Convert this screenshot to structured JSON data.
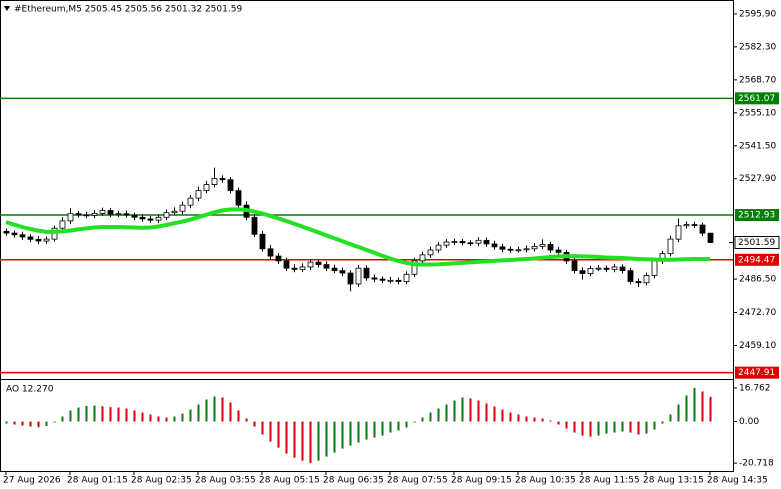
{
  "chart_data": {
    "type": "candlestick",
    "title": "#Ethereum,M5 2505.45 2505.56 2501.32 2501.59",
    "categories": [
      "27 Aug 2026",
      null,
      null,
      null,
      null,
      null,
      null,
      null,
      "28 Aug 01:15",
      null,
      null,
      null,
      null,
      null,
      null,
      null,
      "28 Aug 02:35",
      null,
      null,
      null,
      null,
      null,
      null,
      null,
      "28 Aug 03:55",
      null,
      null,
      null,
      null,
      null,
      null,
      null,
      "28 Aug 05:15",
      null,
      null,
      null,
      null,
      null,
      null,
      null,
      "28 Aug 06:35",
      null,
      null,
      null,
      null,
      null,
      null,
      null,
      "28 Aug 07:55",
      null,
      null,
      null,
      null,
      null,
      null,
      null,
      "28 Aug 09:15",
      null,
      null,
      null,
      null,
      null,
      null,
      null,
      "28 Aug 10:35",
      null,
      null,
      null,
      null,
      null,
      null,
      null,
      "28 Aug 11:55",
      null,
      null,
      null,
      null,
      null,
      null,
      null,
      "28 Aug 13:15",
      null,
      null,
      null,
      null,
      null,
      null,
      null,
      "28 Aug 14:35"
    ],
    "open": [
      2506.2,
      2505.5,
      2504.8,
      2503.9,
      2502.9,
      2502.2,
      2503.0,
      2507.5,
      2510.5,
      2513.5,
      2513.0,
      2512.8,
      2513.6,
      2514.8,
      2513.2,
      2513.5,
      2512.9,
      2512.0,
      2511.3,
      2510.8,
      2512.0,
      2513.9,
      2514.5,
      2517.0,
      2519.9,
      2523.0,
      2525.5,
      2528.0,
      2527.5,
      2523.0,
      2517.0,
      2512.0,
      2505.0,
      2499.0,
      2496.0,
      2494.0,
      2491.0,
      2490.5,
      2491.5,
      2493.5,
      2492.5,
      2491.0,
      2490.0,
      2489.0,
      2484.5,
      2491.0,
      2487.0,
      2486.5,
      2486.0,
      2486.0,
      2485.5,
      2488.5,
      2494.0,
      2496.5,
      2498.5,
      2500.5,
      2501.8,
      2502.0,
      2501.5,
      2501.3,
      2502.5,
      2501.0,
      2499.8,
      2498.8,
      2498.5,
      2498.6,
      2499.0,
      2500.0,
      2500.8,
      2498.5,
      2497.5,
      2494.0,
      2490.0,
      2488.8,
      2490.9,
      2491.0,
      2490.5,
      2491.5,
      2490.0,
      2485.5,
      2485.0,
      2488.0,
      2494.0,
      2497.0,
      2503.0,
      2508.5,
      2509.0,
      2508.8,
      2505.45
    ],
    "high": [
      2507.4,
      2506.5,
      2506.1,
      2505.0,
      2504.3,
      2504.1,
      2508.6,
      2512.0,
      2515.8,
      2514.6,
      2514.2,
      2514.9,
      2516.0,
      2515.9,
      2514.7,
      2514.8,
      2513.9,
      2513.2,
      2512.6,
      2513.1,
      2515.2,
      2516.1,
      2518.4,
      2521.2,
      2524.6,
      2527.0,
      2532.5,
      2529.3,
      2528.6,
      2524.3,
      2518.5,
      2513.4,
      2506.3,
      2500.6,
      2497.2,
      2495.3,
      2492.6,
      2493.0,
      2494.8,
      2494.6,
      2493.8,
      2492.4,
      2491.3,
      2490.1,
      2492.3,
      2492.2,
      2488.4,
      2487.6,
      2487.4,
      2487.1,
      2489.7,
      2495.3,
      2497.8,
      2499.9,
      2501.7,
      2503.0,
      2503.2,
      2503.1,
      2502.6,
      2503.8,
      2503.6,
      2502.3,
      2501.0,
      2500.0,
      2499.9,
      2500.3,
      2501.4,
      2502.9,
      2501.9,
      2499.7,
      2498.6,
      2495.2,
      2491.4,
      2492.0,
      2492.3,
      2492.1,
      2492.8,
      2492.6,
      2491.1,
      2486.8,
      2489.2,
      2495.3,
      2498.2,
      2504.4,
      2511.5,
      2510.2,
      2510.1,
      2509.8,
      2505.56
    ],
    "low": [
      2504.4,
      2503.6,
      2502.7,
      2501.8,
      2501.0,
      2501.1,
      2502.0,
      2506.3,
      2509.4,
      2511.9,
      2511.6,
      2511.7,
      2512.5,
      2512.0,
      2512.1,
      2511.8,
      2510.9,
      2510.1,
      2509.7,
      2509.6,
      2510.9,
      2512.8,
      2513.3,
      2515.8,
      2518.7,
      2521.9,
      2524.3,
      2526.2,
      2521.8,
      2515.8,
      2510.8,
      2503.9,
      2497.8,
      2494.2,
      2492.8,
      2489.8,
      2489.3,
      2489.4,
      2490.3,
      2491.3,
      2489.8,
      2488.9,
      2487.8,
      2481.5,
      2483.3,
      2485.8,
      2485.3,
      2484.9,
      2484.8,
      2484.3,
      2484.4,
      2487.3,
      2492.8,
      2495.3,
      2497.4,
      2499.4,
      2500.6,
      2500.4,
      2500.2,
      2500.1,
      2499.8,
      2498.6,
      2497.7,
      2497.3,
      2497.4,
      2497.5,
      2497.9,
      2498.9,
      2497.3,
      2496.3,
      2492.8,
      2488.8,
      2486.4,
      2487.7,
      2489.8,
      2489.4,
      2489.3,
      2488.8,
      2484.3,
      2483.2,
      2483.9,
      2486.8,
      2492.8,
      2495.8,
      2501.8,
      2507.3,
      2507.6,
      2504.3,
      2501.32
    ],
    "close": [
      2505.5,
      2504.8,
      2503.9,
      2502.9,
      2502.2,
      2503.0,
      2507.5,
      2510.5,
      2513.5,
      2513.0,
      2512.8,
      2513.6,
      2514.8,
      2513.2,
      2513.5,
      2512.9,
      2512.0,
      2511.3,
      2510.8,
      2512.0,
      2513.9,
      2514.5,
      2517.0,
      2519.9,
      2523.0,
      2525.5,
      2528.0,
      2527.5,
      2523.0,
      2517.0,
      2512.0,
      2505.0,
      2499.0,
      2496.0,
      2494.0,
      2491.0,
      2490.5,
      2491.5,
      2493.5,
      2492.5,
      2491.0,
      2490.0,
      2489.0,
      2484.5,
      2491.0,
      2487.0,
      2486.5,
      2486.0,
      2486.0,
      2485.5,
      2488.5,
      2494.0,
      2496.5,
      2498.5,
      2500.5,
      2501.8,
      2502.0,
      2501.5,
      2501.3,
      2502.5,
      2501.0,
      2499.8,
      2498.8,
      2498.5,
      2498.6,
      2499.0,
      2500.0,
      2500.8,
      2498.5,
      2497.5,
      2494.0,
      2490.0,
      2488.8,
      2490.9,
      2491.0,
      2490.5,
      2491.5,
      2490.0,
      2485.5,
      2485.0,
      2488.0,
      2494.0,
      2497.0,
      2503.0,
      2508.5,
      2509.0,
      2508.8,
      2505.45,
      2501.59
    ],
    "up_color": "#ffffff",
    "down_color": "#000000",
    "overlay": {
      "color": "#22e022",
      "values": [
        2510.0,
        2509.0,
        2508.0,
        2507.2,
        2506.5,
        2506.0,
        2506.0,
        2506.2,
        2506.5,
        2507.0,
        2507.4,
        2507.8,
        2508.0,
        2508.0,
        2508.0,
        2507.9,
        2507.8,
        2507.7,
        2507.8,
        2508.2,
        2508.8,
        2509.5,
        2510.2,
        2511.0,
        2512.0,
        2513.0,
        2514.0,
        2514.8,
        2515.2,
        2515.3,
        2515.0,
        2514.4,
        2513.6,
        2512.6,
        2511.6,
        2510.5,
        2509.4,
        2508.2,
        2507.0,
        2505.8,
        2504.6,
        2503.4,
        2502.2,
        2501.0,
        2499.8,
        2498.6,
        2497.4,
        2496.2,
        2495.0,
        2494.0,
        2493.2,
        2492.7,
        2492.5,
        2492.5,
        2492.6,
        2492.8,
        2493.0,
        2493.2,
        2493.4,
        2493.6,
        2493.8,
        2494.0,
        2494.2,
        2494.4,
        2494.6,
        2494.8,
        2495.0,
        2495.3,
        2495.6,
        2495.8,
        2496.0,
        2496.0,
        2495.9,
        2495.8,
        2495.6,
        2495.4,
        2495.3,
        2495.2,
        2495.0,
        2494.8,
        2494.7,
        2494.6,
        2494.5,
        2494.5,
        2494.6,
        2494.7,
        2494.8,
        2494.8,
        2494.8
      ]
    },
    "levels": [
      {
        "value": 2561.07,
        "label": "2561.07",
        "color": "#008000"
      },
      {
        "value": 2512.93,
        "label": "2512.93",
        "color": "#008000"
      },
      {
        "value": 2494.47,
        "label": "2494.47",
        "color": "#e00000"
      },
      {
        "value": 2447.91,
        "label": "2447.91",
        "color": "#e00000"
      }
    ],
    "last_price": {
      "value": 2501.59,
      "label": "2501.59"
    },
    "ylim": [
      2445.7,
      2600.4
    ],
    "yticks": [
      {
        "value": 2595.9,
        "label": "2595.90"
      },
      {
        "value": 2582.3,
        "label": "2582.30"
      },
      {
        "value": 2568.7,
        "label": "2568.70"
      },
      {
        "value": 2555.1,
        "label": "2555.10"
      },
      {
        "value": 2541.5,
        "label": "2541.50"
      },
      {
        "value": 2527.9,
        "label": "2527.90"
      },
      {
        "value": 2486.5,
        "label": "2486.50"
      },
      {
        "value": 2472.7,
        "label": "2472.70"
      },
      {
        "value": 2459.1,
        "label": "2459.10"
      }
    ],
    "indicator": {
      "type": "histogram",
      "label": "AO 12.270",
      "up_color": "#008000",
      "down_color": "#e00000",
      "values": [
        -1.0,
        -1.5,
        -2.0,
        -2.5,
        -2.8,
        -2.2,
        -0.5,
        2.5,
        5.5,
        7.0,
        7.8,
        8.0,
        7.6,
        7.2,
        7.0,
        6.5,
        5.5,
        4.5,
        3.5,
        2.5,
        2.0,
        2.5,
        4.0,
        6.0,
        8.5,
        11.0,
        12.5,
        12.0,
        9.5,
        5.5,
        1.5,
        -2.5,
        -6.5,
        -10.0,
        -13.0,
        -16.0,
        -18.0,
        -19.5,
        -20.718,
        -19.5,
        -17.5,
        -15.5,
        -13.5,
        -12.0,
        -10.5,
        -9.0,
        -8.0,
        -7.0,
        -5.5,
        -4.5,
        -3.0,
        -0.5,
        2.0,
        4.5,
        6.5,
        8.5,
        10.5,
        12.0,
        11.5,
        10.5,
        9.0,
        7.5,
        6.0,
        4.5,
        3.5,
        2.5,
        2.0,
        1.5,
        0.5,
        -1.5,
        -3.5,
        -5.5,
        -7.0,
        -7.5,
        -7.0,
        -6.0,
        -5.5,
        -5.0,
        -5.5,
        -6.5,
        -6.0,
        -4.0,
        -1.0,
        3.5,
        8.5,
        13.0,
        16.762,
        15.0,
        12.27
      ],
      "ylim": [
        -24.65,
        20.2
      ],
      "yticks": [
        16.762,
        {
          "value": 0,
          "label": "0.00"
        },
        -20.718
      ]
    }
  }
}
